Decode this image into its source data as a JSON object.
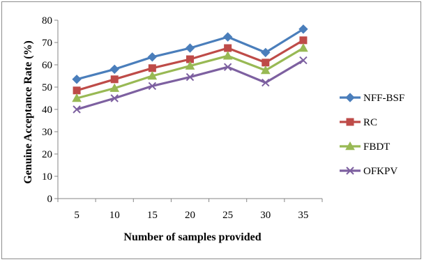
{
  "chart_data": {
    "type": "line",
    "title": "",
    "xlabel": "Number of samples provided",
    "ylabel": "Genuine Acceptance Rate (%)",
    "categories": [
      "5",
      "10",
      "15",
      "20",
      "25",
      "30",
      "35"
    ],
    "ylim": [
      0,
      80
    ],
    "yticks": [
      "0",
      "10",
      "20",
      "30",
      "40",
      "50",
      "60",
      "70",
      "80"
    ],
    "grid": false,
    "legend_position": "right",
    "series": [
      {
        "name": "NFF-BSF",
        "values": [
          53.5,
          58,
          63.5,
          67.5,
          72.5,
          65.5,
          76
        ],
        "color": "#4a7ebb",
        "marker": "diamond"
      },
      {
        "name": "RC",
        "values": [
          48.5,
          53.5,
          58.5,
          62.5,
          67.5,
          61,
          71
        ],
        "color": "#be4b48",
        "marker": "square"
      },
      {
        "name": "FBDT",
        "values": [
          45,
          49.5,
          55,
          59.5,
          64,
          57.5,
          67.5
        ],
        "color": "#98b954",
        "marker": "triangle"
      },
      {
        "name": "OFKPV",
        "values": [
          40,
          45,
          50.5,
          54.5,
          59,
          52,
          62
        ],
        "color": "#7d60a0",
        "marker": "x"
      }
    ]
  }
}
